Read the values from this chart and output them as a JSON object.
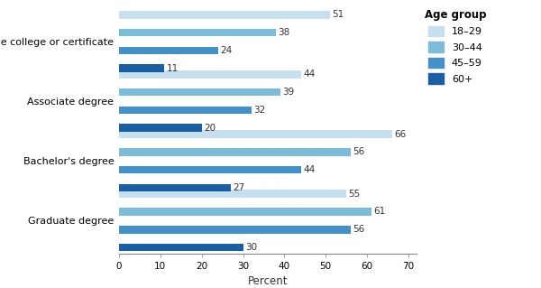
{
  "categories": [
    "Some college or certificate",
    "Associate degree",
    "Bachelor's degree",
    "Graduate degree"
  ],
  "age_groups": [
    "18-29",
    "30-44",
    "45-59",
    "60+"
  ],
  "colors": [
    "#c6e0f0",
    "#7bbcd8",
    "#4490c8",
    "#1a5fa3"
  ],
  "values": [
    [
      51,
      38,
      24,
      11
    ],
    [
      44,
      39,
      32,
      20
    ],
    [
      66,
      56,
      44,
      27
    ],
    [
      55,
      61,
      56,
      30
    ]
  ],
  "legend_labels": [
    "18–29",
    "30–44",
    "45–59",
    "60+"
  ],
  "legend_title": "Age group",
  "xlabel": "Percent",
  "bar_height": 0.13,
  "xlim": [
    0,
    72
  ],
  "label_fontsize": 7.5,
  "axis_label_fontsize": 8.5,
  "legend_fontsize": 8,
  "legend_title_fontsize": 8.5
}
